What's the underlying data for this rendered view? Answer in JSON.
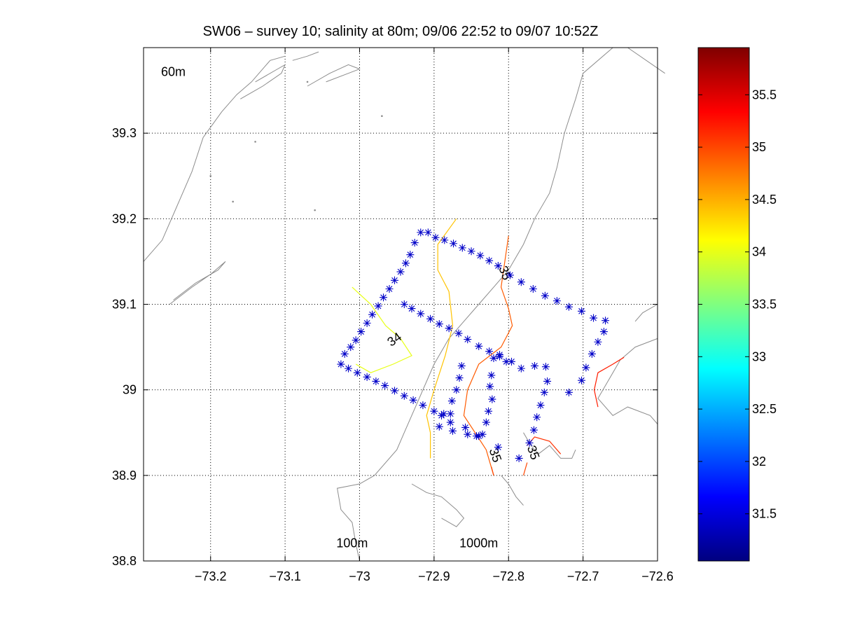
{
  "chart_data": {
    "type": "scatter",
    "title": "SW06 – survey 10; salinity at 80m; 09/06 22:52 to 09/07 10:52Z",
    "xlim": [
      -73.29,
      -72.6
    ],
    "ylim": [
      38.8,
      39.4
    ],
    "x_ticks": [
      -73.2,
      -73.1,
      -73.0,
      -72.9,
      -72.8,
      -72.7,
      -72.6
    ],
    "x_tick_labels": [
      "−73.2",
      "−73.1",
      "−73",
      "−72.9",
      "−72.8",
      "−72.7",
      "−72.6"
    ],
    "y_ticks": [
      38.8,
      38.9,
      39.0,
      39.1,
      39.2,
      39.3
    ],
    "y_tick_labels": [
      "38.8",
      "38.9",
      "39",
      "39.1",
      "39.2",
      "39.3"
    ],
    "grid": true,
    "colormap": "jet",
    "colorbar": {
      "range": [
        31.05,
        35.95
      ],
      "ticks": [
        31.5,
        32,
        32.5,
        33,
        33.5,
        34,
        34.5,
        35,
        35.5
      ],
      "tick_labels": [
        "31.5",
        "32",
        "32.5",
        "33",
        "33.5",
        "34",
        "34.5",
        "35",
        "35.5"
      ]
    },
    "bathymetry_labels": [
      {
        "text": "60m",
        "x": -73.25,
        "y": 39.367
      },
      {
        "text": "100m",
        "x": -73.01,
        "y": 38.816
      },
      {
        "text": "1000m",
        "x": -72.84,
        "y": 38.816
      }
    ],
    "bathymetry_lines": [
      [
        [
          -73.29,
          39.15
        ],
        [
          -73.265,
          39.175
        ],
        [
          -73.245,
          39.215
        ],
        [
          -73.225,
          39.255
        ],
        [
          -73.21,
          39.295
        ],
        [
          -73.185,
          39.325
        ],
        [
          -73.165,
          39.345
        ],
        [
          -73.145,
          39.36
        ],
        [
          -73.12,
          39.385
        ],
        [
          -73.1,
          39.39
        ]
      ],
      [
        [
          -73.255,
          39.1
        ],
        [
          -73.225,
          39.12
        ],
        [
          -73.2,
          39.135
        ],
        [
          -73.18,
          39.15
        ],
        [
          -73.19,
          39.14
        ],
        [
          -73.22,
          39.125
        ],
        [
          -73.25,
          39.105
        ]
      ],
      [
        [
          -73.16,
          39.34
        ],
        [
          -73.13,
          39.355
        ],
        [
          -73.105,
          39.37
        ],
        [
          -73.1,
          39.38
        ],
        [
          -73.11,
          39.375
        ],
        [
          -73.14,
          39.36
        ]
      ],
      [
        [
          -73.07,
          39.355
        ],
        [
          -73.04,
          39.37
        ],
        [
          -73.015,
          39.38
        ],
        [
          -73.0,
          39.375
        ],
        [
          -73.015,
          39.37
        ],
        [
          -73.045,
          39.36
        ]
      ],
      [
        [
          -73.09,
          39.385
        ],
        [
          -73.07,
          39.39
        ],
        [
          -73.055,
          39.395
        ]
      ],
      [
        [
          -72.59,
          39.37
        ],
        [
          -72.64,
          39.4
        ]
      ],
      [
        [
          -72.66,
          39.4
        ],
        [
          -72.7,
          39.37
        ],
        [
          -72.71,
          39.34
        ],
        [
          -72.725,
          39.3
        ],
        [
          -72.735,
          39.26
        ],
        [
          -72.745,
          39.23
        ],
        [
          -72.765,
          39.2
        ],
        [
          -72.78,
          39.17
        ],
        [
          -72.8,
          39.14
        ],
        [
          -72.82,
          39.12
        ],
        [
          -72.84,
          39.1
        ],
        [
          -72.86,
          39.08
        ],
        [
          -72.88,
          39.06
        ],
        [
          -72.9,
          39.03
        ],
        [
          -72.92,
          38.99
        ],
        [
          -72.94,
          38.95
        ],
        [
          -72.95,
          38.93
        ],
        [
          -72.98,
          38.9
        ],
        [
          -73.0,
          38.89
        ],
        [
          -73.03,
          38.885
        ],
        [
          -73.025,
          38.86
        ],
        [
          -73.01,
          38.845
        ],
        [
          -73.005,
          38.82
        ],
        [
          -73.0,
          38.8
        ]
      ],
      [
        [
          -72.6,
          39.06
        ],
        [
          -72.63,
          39.05
        ],
        [
          -72.65,
          39.035
        ],
        [
          -72.66,
          39.02
        ],
        [
          -72.68,
          38.99
        ],
        [
          -72.66,
          38.97
        ],
        [
          -72.64,
          38.98
        ],
        [
          -72.61,
          38.97
        ],
        [
          -72.6,
          38.96
        ]
      ],
      [
        [
          -72.6,
          39.1
        ],
        [
          -72.62,
          39.09
        ],
        [
          -72.63,
          39.08
        ]
      ],
      [
        [
          -72.78,
          38.95
        ],
        [
          -72.77,
          38.935
        ],
        [
          -72.76,
          38.925
        ],
        [
          -72.745,
          38.935
        ],
        [
          -72.73,
          38.92
        ],
        [
          -72.715,
          38.92
        ],
        [
          -72.71,
          38.93
        ]
      ],
      [
        [
          -72.93,
          38.89
        ],
        [
          -72.91,
          38.88
        ],
        [
          -72.89,
          38.875
        ],
        [
          -72.87,
          38.86
        ],
        [
          -72.86,
          38.85
        ],
        [
          -72.87,
          38.84
        ],
        [
          -72.89,
          38.85
        ]
      ],
      [
        [
          -72.81,
          38.9
        ],
        [
          -72.8,
          38.89
        ],
        [
          -72.79,
          38.875
        ],
        [
          -72.78,
          38.865
        ]
      ]
    ],
    "bathymetry_dots": [
      [
        -73.2,
        39.25
      ],
      [
        -73.17,
        39.22
      ],
      [
        -73.14,
        39.29
      ],
      [
        -73.06,
        39.21
      ],
      [
        -73.07,
        39.36
      ],
      [
        -72.97,
        39.32
      ]
    ],
    "contours": [
      {
        "level": 34.0,
        "label": "34",
        "label_x": -72.95,
        "label_y": 39.055,
        "points": [
          [
            -73.01,
            39.12
          ],
          [
            -72.985,
            39.1
          ],
          [
            -72.965,
            39.075
          ],
          [
            -72.945,
            39.06
          ],
          [
            -72.93,
            39.04
          ],
          [
            -72.955,
            39.03
          ],
          [
            -72.985,
            39.02
          ],
          [
            -73.005,
            39.03
          ]
        ]
      },
      {
        "level": 34.4,
        "label": "",
        "points": [
          [
            -72.87,
            39.2
          ],
          [
            -72.895,
            39.17
          ],
          [
            -72.895,
            39.14
          ],
          [
            -72.88,
            39.115
          ],
          [
            -72.875,
            39.075
          ],
          [
            -72.885,
            39.04
          ],
          [
            -72.9,
            39.0
          ],
          [
            -72.91,
            38.97
          ],
          [
            -72.905,
            38.95
          ],
          [
            -72.905,
            38.92
          ]
        ]
      },
      {
        "level": 34.9,
        "label": "",
        "points": [
          [
            -72.8,
            39.18
          ],
          [
            -72.805,
            39.15
          ],
          [
            -72.81,
            39.12
          ],
          [
            -72.8,
            39.095
          ],
          [
            -72.795,
            39.075
          ],
          [
            -72.81,
            39.05
          ],
          [
            -72.84,
            39.03
          ],
          [
            -72.855,
            39.0
          ],
          [
            -72.86,
            38.97
          ],
          [
            -72.845,
            38.95
          ],
          [
            -72.83,
            38.93
          ],
          [
            -72.82,
            38.9
          ]
        ]
      },
      {
        "level": 35.0,
        "label": "35",
        "label_x": -72.81,
        "label_y": 39.135,
        "points": []
      },
      {
        "level": 35.0,
        "label": "35",
        "label_x": -72.823,
        "label_y": 38.922,
        "points": [
          [
            -72.823,
            38.91
          ],
          [
            -72.82,
            38.9
          ]
        ]
      },
      {
        "level": 35.0,
        "label": "35",
        "label_x": -72.772,
        "label_y": 38.925,
        "points": [
          [
            -72.78,
            38.9
          ],
          [
            -72.775,
            38.915
          ]
        ]
      },
      {
        "level": 35.1,
        "label": "",
        "points": [
          [
            -72.775,
            38.935
          ],
          [
            -72.765,
            38.945
          ],
          [
            -72.745,
            38.94
          ],
          [
            -72.73,
            38.925
          ]
        ]
      },
      {
        "level": 35.2,
        "label": "",
        "points": [
          [
            -72.68,
            38.98
          ],
          [
            -72.685,
            39.0
          ],
          [
            -72.68,
            39.02
          ],
          [
            -72.66,
            39.03
          ],
          [
            -72.645,
            39.038
          ]
        ]
      }
    ],
    "stations": [
      [
        -73.025,
        39.03
      ],
      [
        -73.02,
        39.042
      ],
      [
        -73.012,
        39.05
      ],
      [
        -73.005,
        39.058
      ],
      [
        -72.998,
        39.068
      ],
      [
        -72.99,
        39.078
      ],
      [
        -72.983,
        39.088
      ],
      [
        -72.975,
        39.098
      ],
      [
        -72.968,
        39.108
      ],
      [
        -72.96,
        39.118
      ],
      [
        -72.953,
        39.128
      ],
      [
        -72.945,
        39.138
      ],
      [
        -72.938,
        39.148
      ],
      [
        -72.932,
        39.158
      ],
      [
        -72.926,
        39.172
      ],
      [
        -72.918,
        39.184
      ],
      [
        -72.908,
        39.184
      ],
      [
        -72.898,
        39.178
      ],
      [
        -72.886,
        39.175
      ],
      [
        -72.874,
        39.171
      ],
      [
        -72.862,
        39.166
      ],
      [
        -72.85,
        39.162
      ],
      [
        -72.838,
        39.157
      ],
      [
        -72.826,
        39.151
      ],
      [
        -72.814,
        39.145
      ],
      [
        -72.798,
        39.134
      ],
      [
        -72.783,
        39.126
      ],
      [
        -72.767,
        39.118
      ],
      [
        -72.751,
        39.11
      ],
      [
        -72.735,
        39.104
      ],
      [
        -72.719,
        39.097
      ],
      [
        -72.702,
        39.092
      ],
      [
        -72.686,
        39.084
      ],
      [
        -72.67,
        39.081
      ],
      [
        -72.672,
        39.068
      ],
      [
        -72.68,
        39.056
      ],
      [
        -72.688,
        39.042
      ],
      [
        -72.696,
        39.026
      ],
      [
        -72.702,
        39.011
      ],
      [
        -72.719,
        38.997
      ],
      [
        -72.748,
        39.01
      ],
      [
        -72.752,
        38.997
      ],
      [
        -72.757,
        38.982
      ],
      [
        -72.762,
        38.968
      ],
      [
        -72.766,
        38.953
      ],
      [
        -72.772,
        38.938
      ],
      [
        -72.786,
        38.92
      ],
      [
        -72.75,
        39.027
      ],
      [
        -72.765,
        39.028
      ],
      [
        -72.783,
        39.025
      ],
      [
        -72.796,
        39.033
      ],
      [
        -72.803,
        39.033
      ],
      [
        -72.812,
        39.041
      ],
      [
        -72.82,
        39.037
      ],
      [
        -72.823,
        39.017
      ],
      [
        -72.825,
        39.004
      ],
      [
        -72.822,
        38.989
      ],
      [
        -72.827,
        38.975
      ],
      [
        -72.83,
        38.962
      ],
      [
        -72.835,
        38.948
      ],
      [
        -72.814,
        38.933
      ],
      [
        -72.94,
        39.1
      ],
      [
        -72.93,
        39.095
      ],
      [
        -72.918,
        39.089
      ],
      [
        -72.905,
        39.083
      ],
      [
        -72.893,
        39.077
      ],
      [
        -72.88,
        39.072
      ],
      [
        -72.867,
        39.066
      ],
      [
        -72.855,
        39.059
      ],
      [
        -72.84,
        39.051
      ],
      [
        -72.826,
        39.045
      ],
      [
        -72.812,
        39.039
      ],
      [
        -72.863,
        39.028
      ],
      [
        -72.866,
        39.014
      ],
      [
        -72.87,
        39.0
      ],
      [
        -72.876,
        38.987
      ],
      [
        -72.878,
        38.972
      ],
      [
        -72.878,
        38.962
      ],
      [
        -72.887,
        38.972
      ],
      [
        -72.89,
        38.97
      ],
      [
        -72.893,
        38.957
      ],
      [
        -72.875,
        38.952
      ],
      [
        -72.858,
        38.956
      ],
      [
        -72.855,
        38.948
      ],
      [
        -72.843,
        38.946
      ],
      [
        -72.84,
        38.946
      ],
      [
        -73.015,
        39.025
      ],
      [
        -73.003,
        39.02
      ],
      [
        -72.99,
        39.015
      ],
      [
        -72.978,
        39.01
      ],
      [
        -72.966,
        39.005
      ],
      [
        -72.953,
        38.999
      ],
      [
        -72.94,
        38.993
      ],
      [
        -72.928,
        38.988
      ],
      [
        -72.915,
        38.982
      ],
      [
        -72.9,
        38.975
      ]
    ]
  }
}
